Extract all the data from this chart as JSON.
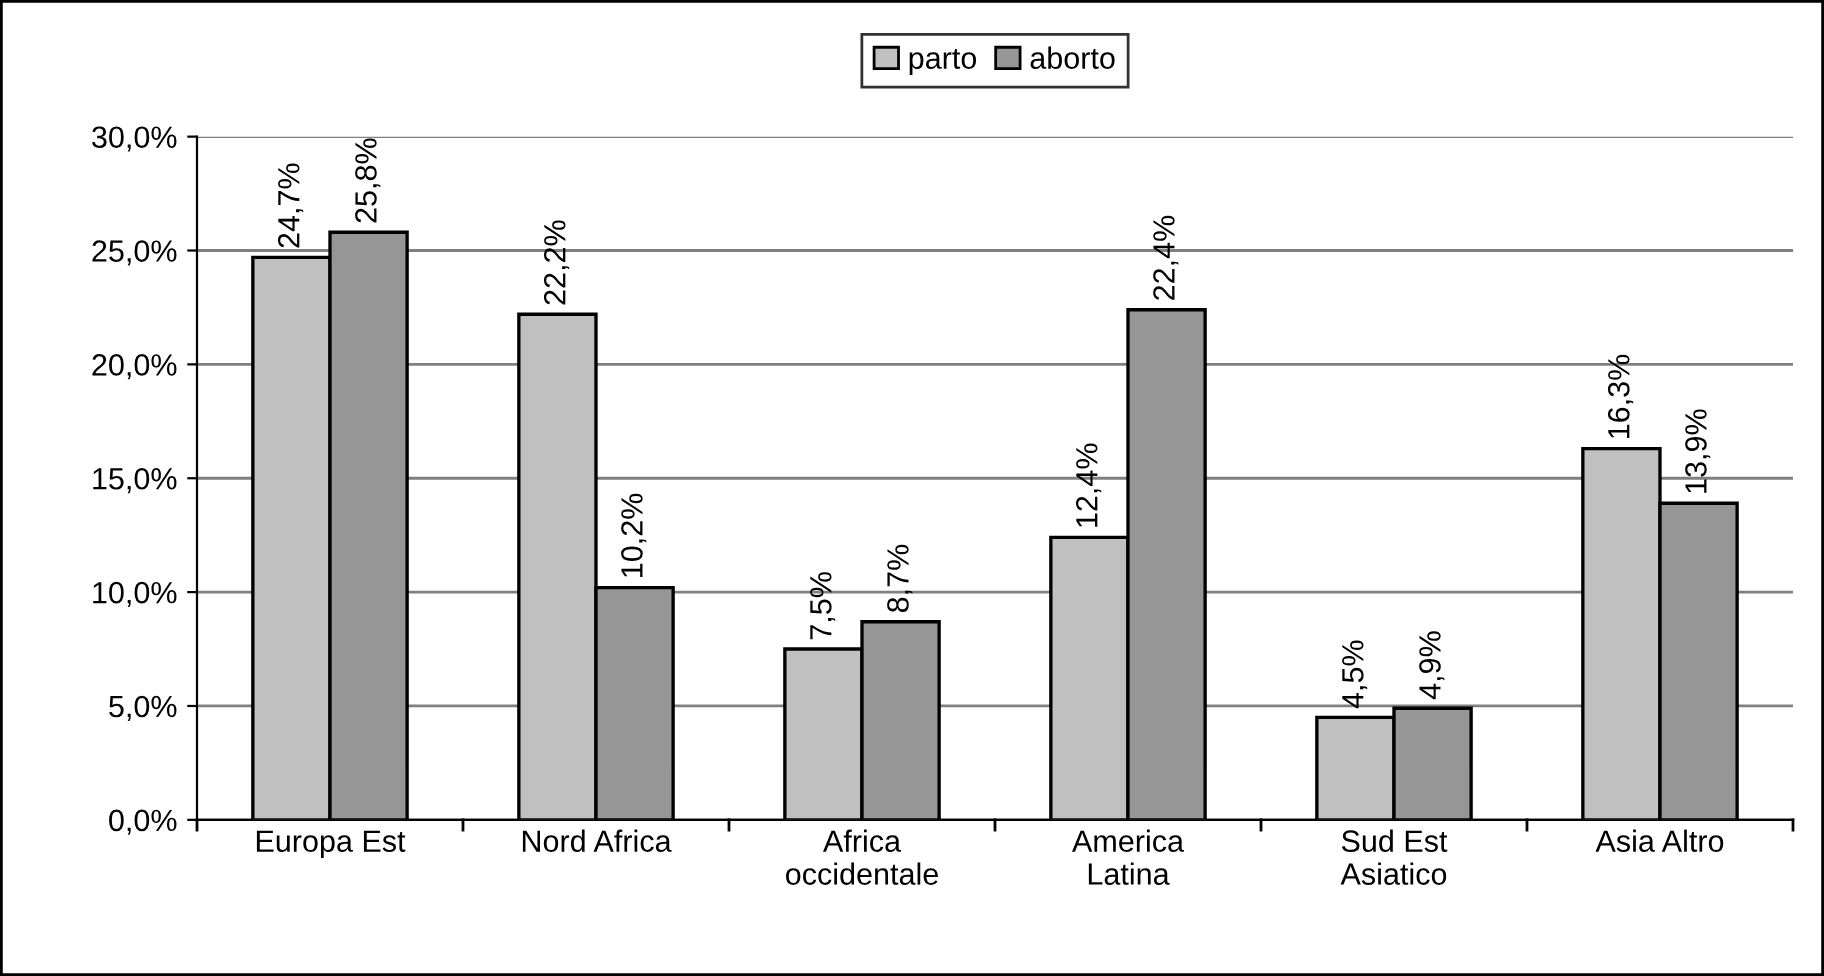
{
  "chart_data": {
    "type": "bar",
    "categories": [
      "Europa Est",
      "Nord Africa",
      "Africa\noccidentale",
      "America\nLatina",
      "Sud Est\nAsiatico",
      "Asia Altro"
    ],
    "series": [
      {
        "name": "parto",
        "color": "#c0c0c0",
        "values": [
          24.7,
          22.2,
          7.5,
          12.4,
          4.5,
          16.3
        ],
        "value_labels": [
          "24,7%",
          "22,2%",
          "7,5%",
          "12,4%",
          "4,5%",
          "16,3%"
        ]
      },
      {
        "name": "aborto",
        "color": "#969696",
        "values": [
          25.8,
          10.2,
          8.7,
          22.4,
          4.9,
          13.9
        ],
        "value_labels": [
          "25,8%",
          "10,2%",
          "8,7%",
          "22,4%",
          "4,9%",
          "13,9%"
        ]
      }
    ],
    "ylim": [
      0,
      30
    ],
    "yticks": [
      {
        "value": 0,
        "label": "0,0%"
      },
      {
        "value": 5,
        "label": "5,0%"
      },
      {
        "value": 10,
        "label": "10,0%"
      },
      {
        "value": 15,
        "label": "15,0%"
      },
      {
        "value": 20,
        "label": "20,0%"
      },
      {
        "value": 25,
        "label": "25,0%"
      },
      {
        "value": 30,
        "label": "30,0%"
      }
    ],
    "grid": "y",
    "legend": "top"
  }
}
